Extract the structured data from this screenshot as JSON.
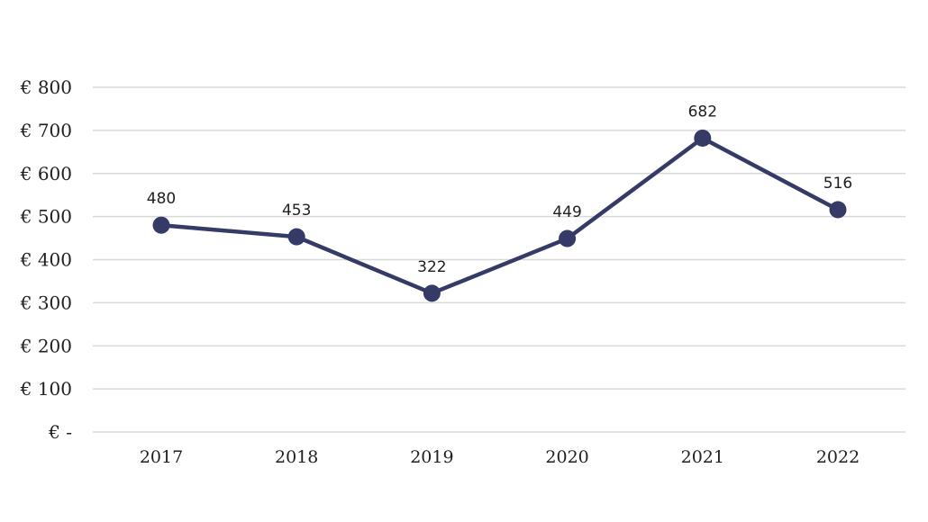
{
  "chart_data": {
    "type": "line",
    "title": "",
    "xlabel": "",
    "ylabel": "",
    "categories": [
      "2017",
      "2018",
      "2019",
      "2020",
      "2021",
      "2022"
    ],
    "values": [
      480,
      453,
      322,
      449,
      682,
      516
    ],
    "data_labels": [
      "480",
      "453",
      "322",
      "449",
      "682",
      "516"
    ],
    "ylim": [
      0,
      800
    ],
    "y_ticks": [
      0,
      100,
      200,
      300,
      400,
      500,
      600,
      700,
      800
    ],
    "y_tick_labels": [
      "€ -",
      "€ 100",
      "€ 200",
      "€ 300",
      "€ 400",
      "€ 500",
      "€ 600",
      "€ 700",
      "€ 800"
    ],
    "grid": true,
    "legend": "none",
    "colors": {
      "line": "#353a66",
      "grid": "#d9d9d9",
      "text": "#1f1f1f"
    }
  }
}
